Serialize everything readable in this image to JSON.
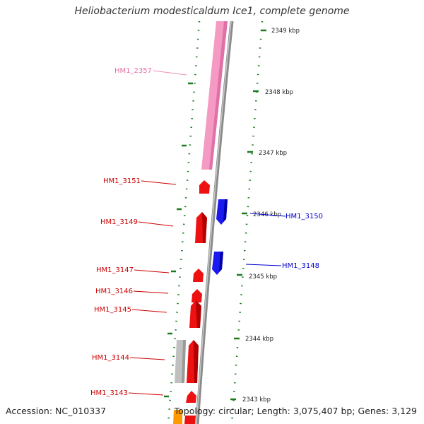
{
  "title": "Heliobacterium modesticaldum Ice1, complete genome",
  "accession": "Accession: NC_010337",
  "summary": "Topology: circular; Length: 3,075,407 bp; Genes: 3,129",
  "colors": {
    "ruler": "#1e7a1e",
    "backbone": "#8a8a8a",
    "forward_gene": "#ee1111",
    "reverse_gene": "#1a1aee",
    "rna_gene": "#f59ac2",
    "other_gene": "#c0c0c0",
    "orange_gene": "#ff9900"
  },
  "ruler": {
    "ticks": [
      "2349 kbp",
      "2348 kbp",
      "2347 kbp",
      "2346 kbp",
      "2345 kbp",
      "2344 kbp",
      "2343 kbp"
    ]
  },
  "genes": [
    {
      "id": "HM1_2357",
      "label": "HM1_2357",
      "strand": "rna",
      "color": "#e86fa6"
    },
    {
      "id": "HM1_3151",
      "label": "HM1_3151",
      "strand": "forward",
      "color": "#cc0000"
    },
    {
      "id": "HM1_3150",
      "label": "HM1_3150",
      "strand": "reverse",
      "color": "#0000cc"
    },
    {
      "id": "HM1_3149",
      "label": "HM1_3149",
      "strand": "forward",
      "color": "#cc0000"
    },
    {
      "id": "HM1_3148",
      "label": "HM1_3148",
      "strand": "reverse",
      "color": "#0000cc"
    },
    {
      "id": "HM1_3147",
      "label": "HM1_3147",
      "strand": "forward",
      "color": "#cc0000"
    },
    {
      "id": "HM1_3146",
      "label": "HM1_3146",
      "strand": "forward",
      "color": "#cc0000"
    },
    {
      "id": "HM1_3145",
      "label": "HM1_3145",
      "strand": "forward",
      "color": "#cc0000"
    },
    {
      "id": "HM1_3144",
      "label": "HM1_3144",
      "strand": "forward",
      "color": "#cc0000"
    },
    {
      "id": "HM1_3143",
      "label": "HM1_3143",
      "strand": "forward",
      "color": "#cc0000"
    }
  ]
}
